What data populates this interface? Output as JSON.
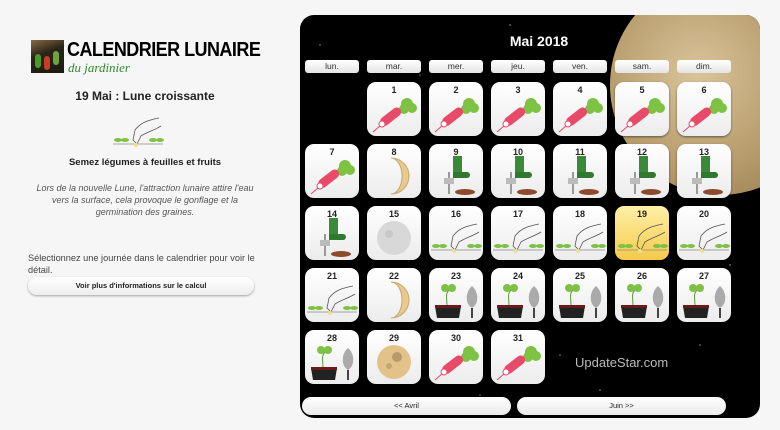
{
  "logo": {
    "title": "CALENDRIER LUNAIRE",
    "subtitle": "du jardinier"
  },
  "detail": {
    "title": "19 Mai : Lune croissante",
    "icon": "sowing-hand",
    "advice": "Semez légumes à feuilles et fruits",
    "description": "Lors de la nouvelle Lune, l'attraction lunaire attire l'eau vers la surface, cela provoque le gonflage et la germination des graines."
  },
  "hint": "Sélectionnez une journée dans le calendrier pour voir le détail.",
  "info_button": "Voir plus d'informations sur le calcul",
  "calendar": {
    "month": "Mai 2018",
    "weekdays": [
      "lun.",
      "mar.",
      "mer.",
      "jeu.",
      "ven.",
      "sam.",
      "dim."
    ],
    "first_weekday_index": 1,
    "selected_day": 19,
    "days": [
      {
        "n": "1",
        "icon": "radish"
      },
      {
        "n": "2",
        "icon": "radish"
      },
      {
        "n": "3",
        "icon": "radish"
      },
      {
        "n": "4",
        "icon": "radish"
      },
      {
        "n": "5",
        "icon": "radish"
      },
      {
        "n": "6",
        "icon": "radish"
      },
      {
        "n": "7",
        "icon": "radish"
      },
      {
        "n": "8",
        "icon": "crescent-moon"
      },
      {
        "n": "9",
        "icon": "boot-fork"
      },
      {
        "n": "10",
        "icon": "boot-fork"
      },
      {
        "n": "11",
        "icon": "boot-fork"
      },
      {
        "n": "12",
        "icon": "boot-fork"
      },
      {
        "n": "13",
        "icon": "boot-fork"
      },
      {
        "n": "14",
        "icon": "boot-fork"
      },
      {
        "n": "15",
        "icon": "full-moon-pale"
      },
      {
        "n": "16",
        "icon": "sowing-hand"
      },
      {
        "n": "17",
        "icon": "sowing-hand"
      },
      {
        "n": "18",
        "icon": "sowing-hand"
      },
      {
        "n": "19",
        "icon": "sowing-hand"
      },
      {
        "n": "20",
        "icon": "sowing-hand"
      },
      {
        "n": "21",
        "icon": "sowing-hand"
      },
      {
        "n": "22",
        "icon": "crescent-moon"
      },
      {
        "n": "23",
        "icon": "seedling-trowel"
      },
      {
        "n": "24",
        "icon": "seedling-trowel"
      },
      {
        "n": "25",
        "icon": "seedling-trowel"
      },
      {
        "n": "26",
        "icon": "seedling-trowel"
      },
      {
        "n": "27",
        "icon": "seedling-trowel"
      },
      {
        "n": "28",
        "icon": "seedling-trowel"
      },
      {
        "n": "29",
        "icon": "full-moon"
      },
      {
        "n": "30",
        "icon": "radish"
      },
      {
        "n": "31",
        "icon": "radish"
      }
    ],
    "prev": "<< Avril",
    "next": "Juin >>"
  },
  "watermark": "UpdateStar.com",
  "colors": {
    "selected": "#f5c94a",
    "background": "#000000"
  }
}
